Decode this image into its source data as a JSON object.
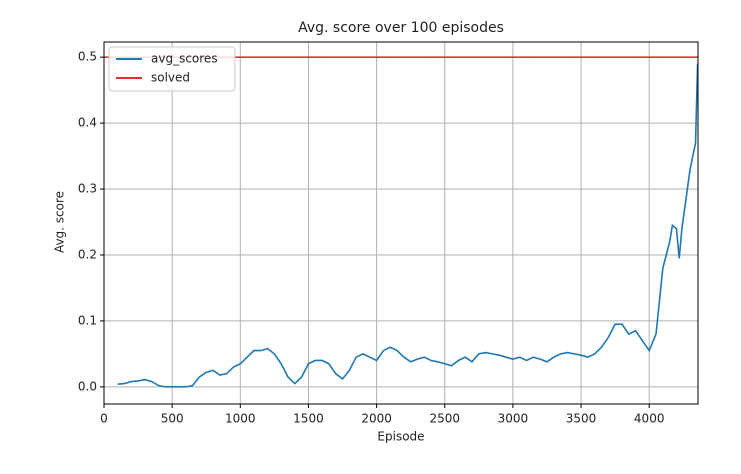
{
  "chart_data": {
    "type": "line",
    "title": "Avg. score over 100 episodes",
    "xlabel": "Episode",
    "ylabel": "Avg. score",
    "xlim": [
      0,
      4358
    ],
    "ylim": [
      -0.026,
      0.523
    ],
    "xticks": [
      0,
      500,
      1000,
      1500,
      2000,
      2500,
      3000,
      3500,
      4000
    ],
    "yticks": [
      {
        "value": 0,
        "label": "0.0"
      },
      0.1,
      0.2,
      0.3,
      0.4,
      0.5
    ],
    "grid": true,
    "legend": "upper left",
    "series": [
      {
        "name": "avg_scores",
        "color": "#1f77b4",
        "x": [
          100,
          150,
          200,
          250,
          300,
          350,
          400,
          450,
          500,
          550,
          600,
          650,
          700,
          750,
          800,
          850,
          900,
          950,
          1000,
          1050,
          1100,
          1150,
          1200,
          1250,
          1300,
          1350,
          1400,
          1450,
          1500,
          1550,
          1600,
          1650,
          1700,
          1750,
          1800,
          1850,
          1900,
          1950,
          2000,
          2050,
          2100,
          2150,
          2200,
          2250,
          2300,
          2350,
          2400,
          2450,
          2500,
          2550,
          2600,
          2650,
          2700,
          2750,
          2800,
          2850,
          2900,
          2950,
          3000,
          3050,
          3100,
          3150,
          3200,
          3250,
          3300,
          3350,
          3400,
          3450,
          3500,
          3550,
          3600,
          3650,
          3700,
          3750,
          3800,
          3850,
          3900,
          3950,
          4000,
          4050,
          4100,
          4150,
          4170,
          4200,
          4220,
          4240,
          4260,
          4280,
          4300,
          4320,
          4340,
          4355
        ],
        "values": [
          0.004,
          0.005,
          0.008,
          0.009,
          0.011,
          0.008,
          0.002,
          0.0,
          0.0,
          0.0,
          0.0,
          0.002,
          0.015,
          0.022,
          0.025,
          0.018,
          0.02,
          0.03,
          0.035,
          0.045,
          0.055,
          0.055,
          0.058,
          0.05,
          0.035,
          0.015,
          0.005,
          0.015,
          0.035,
          0.04,
          0.04,
          0.035,
          0.02,
          0.012,
          0.025,
          0.045,
          0.05,
          0.045,
          0.04,
          0.055,
          0.06,
          0.055,
          0.045,
          0.038,
          0.042,
          0.045,
          0.04,
          0.038,
          0.035,
          0.032,
          0.04,
          0.045,
          0.038,
          0.05,
          0.052,
          0.05,
          0.048,
          0.045,
          0.042,
          0.045,
          0.04,
          0.045,
          0.042,
          0.038,
          0.045,
          0.05,
          0.052,
          0.05,
          0.048,
          0.045,
          0.05,
          0.06,
          0.075,
          0.095,
          0.095,
          0.08,
          0.085,
          0.07,
          0.055,
          0.08,
          0.18,
          0.22,
          0.245,
          0.24,
          0.195,
          0.24,
          0.27,
          0.3,
          0.33,
          0.35,
          0.37,
          0.49
        ]
      }
    ],
    "hlines": [
      {
        "name": "solved",
        "color": "#e8302a",
        "y": 0.5
      }
    ]
  }
}
